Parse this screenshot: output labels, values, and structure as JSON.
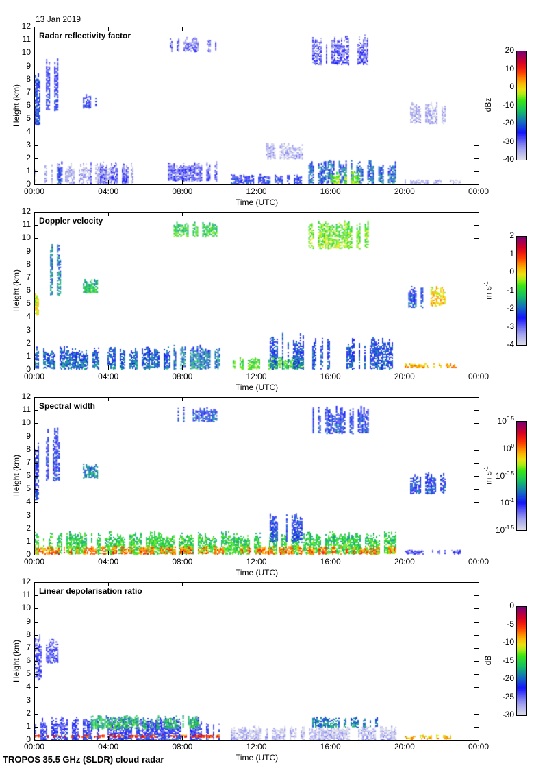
{
  "header": {
    "date": "13 Jan 2019"
  },
  "footer": {
    "instrument": "TROPOS 35.5 GHz (SLDR) cloud radar"
  },
  "chart_data": [
    {
      "type": "heatmap",
      "title": "Radar reflectivity factor",
      "xlabel": "Time (UTC)",
      "ylabel": "Height (km)",
      "xticks": [
        "00:00",
        "04:00",
        "08:00",
        "12:00",
        "16:00",
        "20:00",
        "00:00"
      ],
      "yticks": [
        "0",
        "1",
        "2",
        "3",
        "4",
        "5",
        "6",
        "7",
        "8",
        "9",
        "10",
        "11",
        "12"
      ],
      "ylim": [
        0,
        12
      ],
      "xlim_hours": [
        0,
        24
      ],
      "colorbar": {
        "unit": "dBz",
        "ticks": [
          "20",
          "10",
          "0",
          "-10",
          "-20",
          "-30",
          "-40"
        ],
        "range": [
          -40,
          20
        ]
      }
    },
    {
      "type": "heatmap",
      "title": "Doppler velocity",
      "xlabel": "Time (UTC)",
      "ylabel": "Height (km)",
      "xticks": [
        "00:00",
        "04:00",
        "08:00",
        "12:00",
        "16:00",
        "20:00",
        "00:00"
      ],
      "yticks": [
        "0",
        "1",
        "2",
        "3",
        "4",
        "5",
        "6",
        "7",
        "8",
        "9",
        "10",
        "11",
        "12"
      ],
      "ylim": [
        0,
        12
      ],
      "xlim_hours": [
        0,
        24
      ],
      "colorbar": {
        "unit": "m s",
        "unit_exp": "-1",
        "ticks": [
          "2",
          "1",
          "0",
          "-1",
          "-2",
          "-3",
          "-4"
        ],
        "range": [
          -4,
          2
        ]
      }
    },
    {
      "type": "heatmap",
      "title": "Spectral width",
      "xlabel": "Time (UTC)",
      "ylabel": "Height (km)",
      "xticks": [
        "00:00",
        "04:00",
        "08:00",
        "12:00",
        "16:00",
        "20:00",
        "00:00"
      ],
      "yticks": [
        "0",
        "1",
        "2",
        "3",
        "4",
        "5",
        "6",
        "7",
        "8",
        "9",
        "10",
        "11",
        "12"
      ],
      "ylim": [
        0,
        12
      ],
      "xlim_hours": [
        0,
        24
      ],
      "colorbar": {
        "unit": "m s",
        "unit_exp": "-1",
        "scale": "log",
        "ticks": [
          {
            "base": "10",
            "exp": "0.5"
          },
          {
            "base": "10",
            "exp": "0"
          },
          {
            "base": "10",
            "exp": "-0.5"
          },
          {
            "base": "10",
            "exp": "-1"
          },
          {
            "base": "10",
            "exp": "-1.5"
          }
        ],
        "range_log10": [
          -1.5,
          0.5
        ]
      }
    },
    {
      "type": "heatmap",
      "title": "Linear depolarisation ratio",
      "xlabel": "Time (UTC)",
      "ylabel": "Height (km)",
      "xticks": [
        "00:00",
        "04:00",
        "08:00",
        "12:00",
        "16:00",
        "20:00",
        "00:00"
      ],
      "yticks": [
        "0",
        "1",
        "2",
        "3",
        "4",
        "5",
        "6",
        "7",
        "8",
        "9",
        "10",
        "11",
        "12"
      ],
      "ylim": [
        0,
        12
      ],
      "xlim_hours": [
        0,
        24
      ],
      "colorbar": {
        "unit": "dB",
        "ticks": [
          "0",
          "-5",
          "-10",
          "-15",
          "-20",
          "-25",
          "-30"
        ],
        "range": [
          -30,
          0
        ]
      }
    }
  ],
  "echoes": [
    [
      {
        "t0": 0.0,
        "t1": 0.25,
        "h0": 4.6,
        "h1": 8.8,
        "v": -25
      },
      {
        "t0": 0.6,
        "t1": 1.4,
        "h0": 5.7,
        "h1": 9.8,
        "v": -28
      },
      {
        "t0": 2.6,
        "t1": 3.4,
        "h0": 5.9,
        "h1": 7.0,
        "v": -27
      },
      {
        "t0": 0.0,
        "t1": 5.5,
        "h0": 0.1,
        "h1": 1.7,
        "v": -38
      },
      {
        "t0": 1.2,
        "t1": 1.45,
        "h0": 0.1,
        "h1": 1.9,
        "v": -26
      },
      {
        "t0": 3.0,
        "t1": 5.2,
        "h0": 0.1,
        "h1": 1.8,
        "v": -32
      },
      {
        "t0": 7.2,
        "t1": 9.9,
        "h0": 0.3,
        "h1": 1.8,
        "v": -31
      },
      {
        "t0": 10.6,
        "t1": 14.6,
        "h0": 0.1,
        "h1": 0.8,
        "v": -27
      },
      {
        "t0": 14.8,
        "t1": 19.5,
        "h0": 0.1,
        "h1": 1.9,
        "v": -22
      },
      {
        "t0": 16.0,
        "t1": 17.5,
        "h0": 0.1,
        "h1": 1.0,
        "v": -8
      },
      {
        "t0": 7.3,
        "t1": 9.8,
        "h0": 10.2,
        "h1": 11.3,
        "v": -33
      },
      {
        "t0": 15.0,
        "t1": 18.0,
        "h0": 9.2,
        "h1": 11.5,
        "v": -32
      },
      {
        "t0": 12.5,
        "t1": 14.5,
        "h0": 2.0,
        "h1": 3.2,
        "v": -37
      },
      {
        "t0": 20.3,
        "t1": 22.2,
        "h0": 4.7,
        "h1": 6.4,
        "v": -38
      },
      {
        "t0": 20.0,
        "t1": 23.0,
        "h0": 0.1,
        "h1": 0.4,
        "v": -39
      }
    ],
    [
      {
        "t0": 0.0,
        "t1": 0.4,
        "h0": 4.2,
        "h1": 6.0,
        "v": -0.3
      },
      {
        "t0": 0.6,
        "t1": 1.4,
        "h0": 5.7,
        "h1": 9.8,
        "v": -2.0
      },
      {
        "t0": 2.6,
        "t1": 3.4,
        "h0": 5.9,
        "h1": 7.0,
        "v": -1.4
      },
      {
        "t0": 0.0,
        "t1": 7.3,
        "h0": 0.1,
        "h1": 1.8,
        "v": -2.2
      },
      {
        "t0": 7.5,
        "t1": 10.0,
        "h0": 0.1,
        "h1": 1.9,
        "v": -2.0
      },
      {
        "t0": 10.7,
        "t1": 14.7,
        "h0": 0.1,
        "h1": 1.0,
        "v": -1.0
      },
      {
        "t0": 12.7,
        "t1": 14.5,
        "h0": 0.1,
        "h1": 3.0,
        "v": -2.3
      },
      {
        "t0": 15.0,
        "t1": 19.5,
        "h0": 0.1,
        "h1": 2.5,
        "v": -2.4
      },
      {
        "t0": 7.5,
        "t1": 9.8,
        "h0": 10.2,
        "h1": 11.3,
        "v": -1.2
      },
      {
        "t0": 14.8,
        "t1": 18.0,
        "h0": 9.3,
        "h1": 11.4,
        "v": -0.8
      },
      {
        "t0": 20.2,
        "t1": 21.0,
        "h0": 4.8,
        "h1": 6.4,
        "v": -2.4
      },
      {
        "t0": 21.4,
        "t1": 22.2,
        "h0": 4.9,
        "h1": 6.4,
        "v": -0.1
      },
      {
        "t0": 20.0,
        "t1": 23.0,
        "h0": 0.2,
        "h1": 0.5,
        "v": 0.0
      }
    ],
    [
      {
        "t0": 0.0,
        "t1": 0.4,
        "h0": 4.2,
        "h1": 8.8,
        "v": -1.05
      },
      {
        "t0": 0.6,
        "t1": 1.4,
        "h0": 5.7,
        "h1": 9.8,
        "v": -1.05
      },
      {
        "t0": 2.6,
        "t1": 3.4,
        "h0": 5.9,
        "h1": 7.0,
        "v": -0.8
      },
      {
        "t0": 0.0,
        "t1": 19.5,
        "h0": 0.1,
        "h1": 1.8,
        "v": -0.55
      },
      {
        "t0": 0.0,
        "t1": 19.5,
        "h0": 0.1,
        "h1": 0.7,
        "v": -0.05
      },
      {
        "t0": 12.7,
        "t1": 14.5,
        "h0": 1.0,
        "h1": 3.3,
        "v": -1.0
      },
      {
        "t0": 7.5,
        "t1": 9.8,
        "h0": 10.2,
        "h1": 11.3,
        "v": -1.0
      },
      {
        "t0": 14.8,
        "t1": 18.0,
        "h0": 9.3,
        "h1": 11.4,
        "v": -1.0
      },
      {
        "t0": 20.3,
        "t1": 22.2,
        "h0": 4.7,
        "h1": 6.4,
        "v": -1.0
      },
      {
        "t0": 20.0,
        "t1": 23.0,
        "h0": 0.1,
        "h1": 0.4,
        "v": -1.2
      }
    ],
    [
      {
        "t0": 0.0,
        "t1": 0.3,
        "h0": 4.6,
        "h1": 8.2,
        "v": -25
      },
      {
        "t0": 0.6,
        "t1": 1.4,
        "h0": 5.9,
        "h1": 7.9,
        "v": -25
      },
      {
        "t0": 0.0,
        "t1": 10.0,
        "h0": 0.0,
        "h1": 1.8,
        "v": -24
      },
      {
        "t0": 2.8,
        "t1": 9.0,
        "h0": 0.9,
        "h1": 1.9,
        "v": -17
      },
      {
        "t0": 10.6,
        "t1": 19.5,
        "h0": 0.0,
        "h1": 1.1,
        "v": -29
      },
      {
        "t0": 15.0,
        "t1": 18.5,
        "h0": 1.0,
        "h1": 1.8,
        "v": -20
      },
      {
        "t0": 0.0,
        "t1": 10.0,
        "h0": 0.25,
        "h1": 0.4,
        "v": -6
      },
      {
        "t0": 20.0,
        "t1": 23.0,
        "h0": 0.1,
        "h1": 0.4,
        "v": -10
      }
    ]
  ]
}
